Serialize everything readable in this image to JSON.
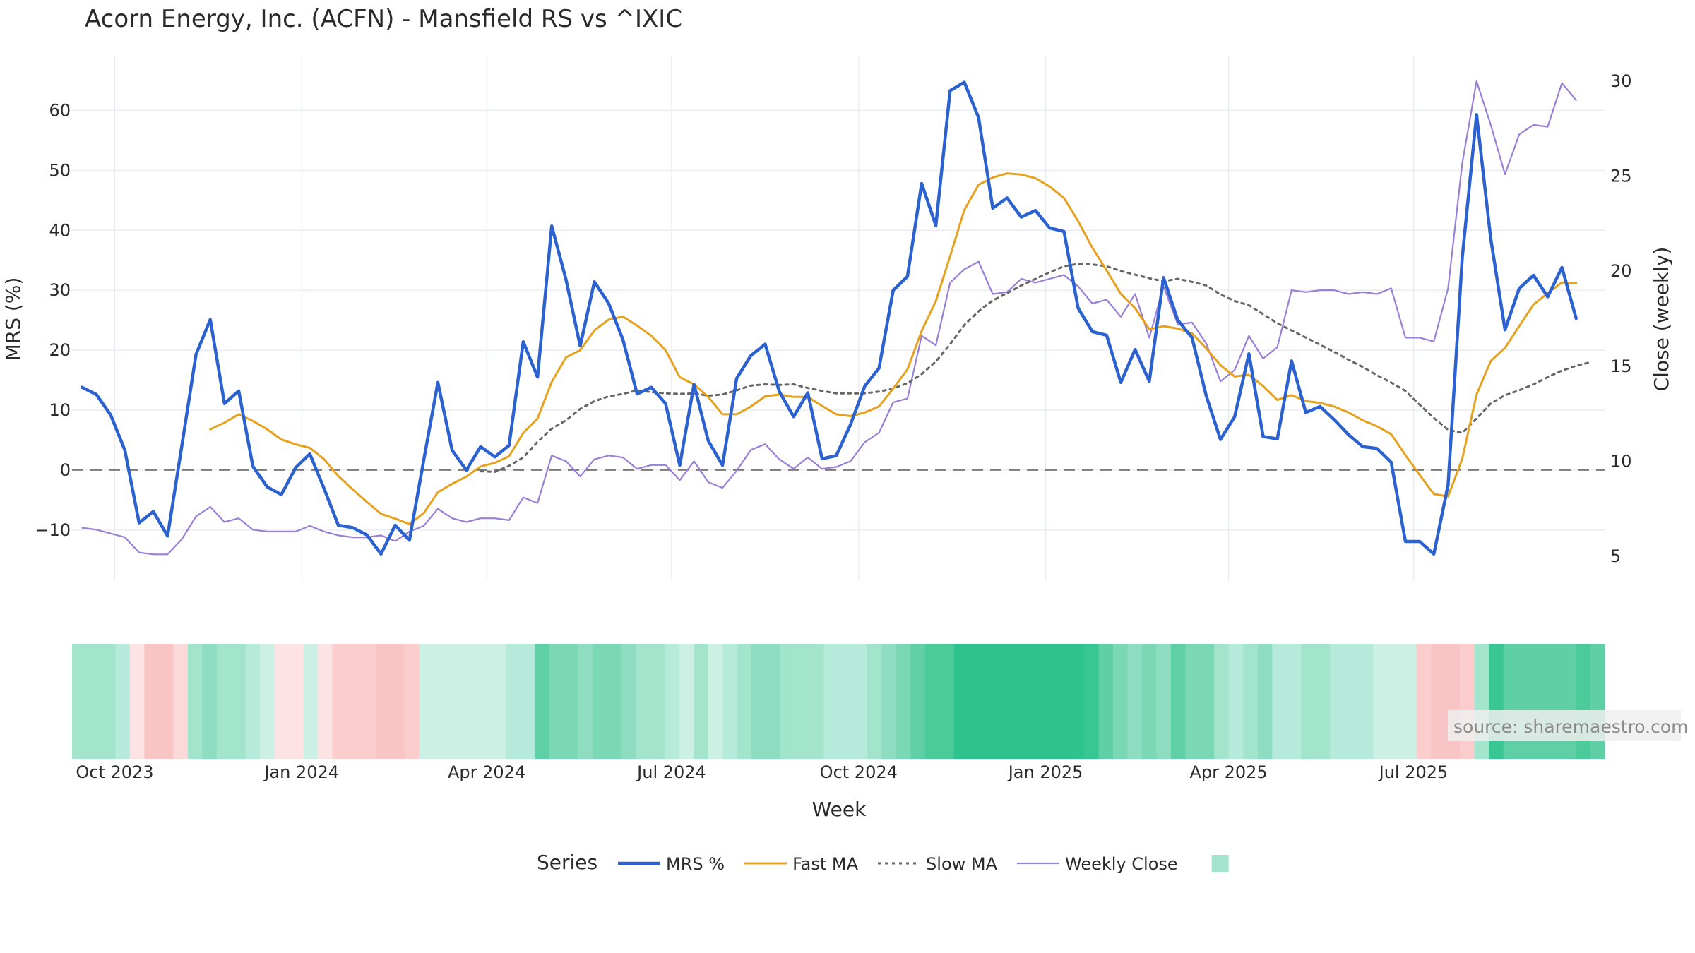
{
  "chart_data": {
    "type": "line",
    "title": "Acorn Energy, Inc. (ACFN) - Mansfield RS vs ^IXIC",
    "xlabel": "Week",
    "ylabel_left": "MRS (%)",
    "ylabel_right": "Close (weekly)",
    "y_left_range": [
      -18.5,
      69
    ],
    "y_right_range": [
      3.7,
      31.3
    ],
    "y_left_ticks": [
      -10,
      0,
      10,
      20,
      30,
      40,
      50,
      60
    ],
    "y_left_tick_labels": [
      "−10",
      "0",
      "10",
      "20",
      "30",
      "40",
      "50",
      "60"
    ],
    "y_right_ticks": [
      5,
      10,
      15,
      20,
      25,
      30
    ],
    "y_right_tick_labels": [
      "5",
      "10",
      "15",
      "20",
      "25",
      "30"
    ],
    "x_range": [
      "2023-09-10",
      "2025-10-03"
    ],
    "x_ticks": [
      {
        "date": "2023-10-01",
        "label": "Oct 2023"
      },
      {
        "date": "2024-01-01",
        "label": "Jan 2024"
      },
      {
        "date": "2024-04-01",
        "label": "Apr 2024"
      },
      {
        "date": "2024-07-01",
        "label": "Jul 2024"
      },
      {
        "date": "2024-10-01",
        "label": "Oct 2024"
      },
      {
        "date": "2025-01-01",
        "label": "Jan 2025"
      },
      {
        "date": "2025-04-01",
        "label": "Apr 2025"
      },
      {
        "date": "2025-07-01",
        "label": "Jul 2025"
      }
    ],
    "x_dates": [
      "2023-09-15",
      "2023-09-22",
      "2023-09-29",
      "2023-10-06",
      "2023-10-13",
      "2023-10-20",
      "2023-10-27",
      "2023-11-03",
      "2023-11-10",
      "2023-11-17",
      "2023-11-24",
      "2023-12-01",
      "2023-12-08",
      "2023-12-15",
      "2023-12-22",
      "2023-12-29",
      "2024-01-05",
      "2024-01-12",
      "2024-01-19",
      "2024-01-26",
      "2024-02-02",
      "2024-02-09",
      "2024-02-16",
      "2024-02-23",
      "2024-03-01",
      "2024-03-08",
      "2024-03-15",
      "2024-03-22",
      "2024-03-29",
      "2024-04-05",
      "2024-04-12",
      "2024-04-19",
      "2024-04-26",
      "2024-05-03",
      "2024-05-10",
      "2024-05-17",
      "2024-05-24",
      "2024-05-31",
      "2024-06-07",
      "2024-06-14",
      "2024-06-21",
      "2024-06-28",
      "2024-07-05",
      "2024-07-12",
      "2024-07-19",
      "2024-07-26",
      "2024-08-02",
      "2024-08-09",
      "2024-08-16",
      "2024-08-23",
      "2024-08-30",
      "2024-09-06",
      "2024-09-13",
      "2024-09-20",
      "2024-09-27",
      "2024-10-04",
      "2024-10-11",
      "2024-10-18",
      "2024-10-25",
      "2024-11-01",
      "2024-11-08",
      "2024-11-15",
      "2024-11-22",
      "2024-11-29",
      "2024-12-06",
      "2024-12-13",
      "2024-12-20",
      "2024-12-27",
      "2025-01-03",
      "2025-01-10",
      "2025-01-17",
      "2025-01-24",
      "2025-01-31",
      "2025-02-07",
      "2025-02-14",
      "2025-02-21",
      "2025-02-28",
      "2025-03-07",
      "2025-03-14",
      "2025-03-21",
      "2025-03-28",
      "2025-04-04",
      "2025-04-11",
      "2025-04-18",
      "2025-04-25",
      "2025-05-02",
      "2025-05-09",
      "2025-05-16",
      "2025-05-23",
      "2025-05-30",
      "2025-06-06",
      "2025-06-13",
      "2025-06-20",
      "2025-06-27",
      "2025-07-04",
      "2025-07-11",
      "2025-07-18",
      "2025-07-25",
      "2025-08-01",
      "2025-08-08",
      "2025-08-15",
      "2025-08-22",
      "2025-08-29",
      "2025-09-05",
      "2025-09-12",
      "2025-09-19",
      "2025-09-26"
    ],
    "series": [
      {
        "name": "MRS %",
        "axis": "left",
        "color": "#2b62d0",
        "values": [
          13.8,
          12.6,
          9.2,
          3.3,
          -8.8,
          -6.9,
          -11,
          4,
          19.3,
          25.1,
          11.1,
          13.2,
          0.6,
          -2.8,
          -4.1,
          0.4,
          2.7,
          -3.1,
          -9.2,
          -9.6,
          -10.8,
          -14,
          -9.2,
          -11.7,
          1.6,
          14.6,
          3.3,
          0,
          3.9,
          2.2,
          4.1,
          21.4,
          15.5,
          40.7,
          31.8,
          20.7,
          31.4,
          27.8,
          21.8,
          12.7,
          13.8,
          11.1,
          0.8,
          14.3,
          4.9,
          0.8,
          15.3,
          19.1,
          21,
          13.1,
          8.9,
          12.9,
          1.9,
          2.4,
          7.6,
          14,
          17,
          30,
          32.3,
          47.8,
          40.8,
          63.3,
          64.7,
          58.8,
          43.7,
          45.4,
          42.2,
          43.3,
          40.4,
          39.8,
          27,
          23.1,
          22.5,
          14.6,
          20.1,
          14.8,
          32.1,
          25,
          22.1,
          12.4,
          5.1,
          8.9,
          19.4,
          5.6,
          5.2,
          18.2,
          9.6,
          10.6,
          8.4,
          5.9,
          3.9,
          3.6,
          1.3,
          -11.9,
          -11.9,
          -14,
          -2.5,
          35.5,
          59.3,
          38.6,
          23.4,
          30.3,
          32.5,
          28.9,
          33.8,
          25.3
        ]
      },
      {
        "name": "Fast MA",
        "axis": "left",
        "color": "#e6a21e",
        "values": [
          null,
          null,
          null,
          null,
          null,
          null,
          null,
          null,
          null,
          6.8,
          7.9,
          9.3,
          8.2,
          6.8,
          5.1,
          4.3,
          3.7,
          1.8,
          -1,
          -3.2,
          -5.3,
          -7.3,
          -8.1,
          -9,
          -7.2,
          -3.7,
          -2.3,
          -1.1,
          0.6,
          1.2,
          2.3,
          6.2,
          8.6,
          14.7,
          18.8,
          20,
          23.3,
          25.1,
          25.6,
          24.1,
          22.4,
          20,
          15.5,
          14.3,
          12.2,
          9.3,
          9.3,
          10.6,
          12.3,
          12.6,
          12.2,
          12.2,
          10.7,
          9.3,
          9,
          9.6,
          10.6,
          13.6,
          16.8,
          23.2,
          28.2,
          35.7,
          43.4,
          47.6,
          48.8,
          49.5,
          49.3,
          48.7,
          47.3,
          45.4,
          41.5,
          37.1,
          33.3,
          29.4,
          27,
          23.5,
          24,
          23.6,
          22.8,
          20.3,
          17.5,
          15.6,
          15.9,
          14,
          11.7,
          12.5,
          11.5,
          11.2,
          10.6,
          9.6,
          8.3,
          7.3,
          6,
          2.5,
          -0.8,
          -4,
          -4.4,
          1.9,
          12.6,
          18.2,
          20.4,
          24,
          27.6,
          29.5,
          31.3,
          31.2
        ]
      },
      {
        "name": "Slow MA",
        "axis": "left",
        "color": "#666666",
        "values": [
          null,
          null,
          null,
          null,
          null,
          null,
          null,
          null,
          null,
          null,
          null,
          null,
          null,
          null,
          null,
          null,
          null,
          null,
          null,
          null,
          null,
          null,
          null,
          null,
          null,
          null,
          null,
          null,
          -0.2,
          -0.3,
          0.7,
          2.1,
          4.7,
          6.9,
          8.3,
          10.2,
          11.5,
          12.3,
          12.7,
          13.3,
          13,
          12.8,
          12.7,
          12.8,
          12.4,
          12.6,
          13.3,
          14.1,
          14.3,
          14.2,
          14.3,
          13.7,
          13.2,
          12.8,
          12.8,
          12.8,
          13.1,
          13.6,
          14.5,
          16,
          18.1,
          21,
          24.2,
          26.5,
          28.3,
          29.5,
          30.8,
          31.9,
          33,
          34,
          34.4,
          34.3,
          34,
          33.2,
          32.6,
          32,
          31.5,
          31.9,
          31.4,
          30.8,
          29.3,
          28.2,
          27.5,
          26,
          24.5,
          23.3,
          22.1,
          20.9,
          19.7,
          18.4,
          17.2,
          15.8,
          14.6,
          13.2,
          10.9,
          8.7,
          6.7,
          6.2,
          8.6,
          11.1,
          12.5,
          13.3,
          14.3,
          15.5,
          16.6,
          17.4,
          18
        ]
      },
      {
        "name": "Weekly Close",
        "axis": "right",
        "color": "#9a7fd6",
        "values": [
          6.5,
          6.4,
          6.2,
          6,
          5.2,
          5.1,
          5.1,
          5.9,
          7.1,
          7.6,
          6.8,
          7,
          6.4,
          6.3,
          6.3,
          6.3,
          6.6,
          6.3,
          6.1,
          6,
          6,
          6.1,
          5.8,
          6.3,
          6.6,
          7.5,
          7,
          6.8,
          7,
          7,
          6.9,
          8.1,
          7.8,
          10.3,
          10,
          9.2,
          10.1,
          10.3,
          10.2,
          9.6,
          9.8,
          9.8,
          9,
          10,
          8.9,
          8.6,
          9.5,
          10.6,
          10.9,
          10.1,
          9.6,
          10.2,
          9.6,
          9.7,
          10,
          11,
          11.5,
          13.1,
          13.3,
          16.6,
          16.1,
          19.4,
          20.1,
          20.5,
          18.8,
          18.9,
          19.6,
          19.4,
          19.6,
          19.8,
          19.2,
          18.3,
          18.5,
          17.6,
          18.8,
          16.5,
          19.2,
          17.2,
          17.3,
          16.2,
          14.2,
          14.8,
          16.6,
          15.4,
          16,
          19,
          18.9,
          19,
          19,
          18.8,
          18.9,
          18.8,
          19.1,
          16.5,
          16.5,
          16.3,
          19.1,
          25.7,
          30,
          27.7,
          25.1,
          27.2,
          27.7,
          27.6,
          29.9,
          29
        ]
      }
    ],
    "reference_line": {
      "axis": "left",
      "value": 0
    },
    "heatmap_strip": {
      "colors": [
        "#a3e4cd",
        "#a3e4cd",
        "#a3e4cd",
        "#b6eada",
        "#fde3e3",
        "#f9c4c4",
        "#f9c4c4",
        "#fcd9d9",
        "#a3e4cd",
        "#8edcc1",
        "#a3e4cd",
        "#a3e4cd",
        "#b6eada",
        "#cdf0e4",
        "#fde3e3",
        "#fde3e3",
        "#cdf0e4",
        "#fde3e3",
        "#fbcdcd",
        "#fbcdcd",
        "#fbcdcd",
        "#f9c4c4",
        "#f9c4c4",
        "#fbcdcd",
        "#cdf0e4",
        "#cdf0e4",
        "#cdf0e4",
        "#cdf0e4",
        "#cdf0e4",
        "#cdf0e4",
        "#b6eada",
        "#b6eada",
        "#5fcfa5",
        "#7ad8b5",
        "#7ad8b5",
        "#8edcc1",
        "#7ad8b5",
        "#7ad8b5",
        "#8edcc1",
        "#a3e4cd",
        "#a3e4cd",
        "#b6eada",
        "#cdf0e4",
        "#a3e4cd",
        "#cdf0e4",
        "#b6eada",
        "#a3e4cd",
        "#8edcc1",
        "#8edcc1",
        "#a3e4cd",
        "#a3e4cd",
        "#a3e4cd",
        "#b6eada",
        "#b6eada",
        "#b6eada",
        "#a3e4cd",
        "#8edcc1",
        "#7ad8b5",
        "#5fcfa5",
        "#4ccb9a",
        "#4ccb9a",
        "#2ec28f",
        "#2ec28f",
        "#2ec28f",
        "#2ec28f",
        "#2ec28f",
        "#2ec28f",
        "#2ec28f",
        "#2ec28f",
        "#2ec28f",
        "#38c695",
        "#5fcfa5",
        "#7ad8b5",
        "#8edcc1",
        "#7ad8b5",
        "#8edcc1",
        "#5fcfa5",
        "#7ad8b5",
        "#7ad8b5",
        "#a3e4cd",
        "#b6eada",
        "#a3e4cd",
        "#8edcc1",
        "#b6eada",
        "#b6eada",
        "#a3e4cd",
        "#a3e4cd",
        "#b6eada",
        "#b6eada",
        "#b6eada",
        "#cdf0e4",
        "#cdf0e4",
        "#cdf0e4",
        "#fbcdcd",
        "#f9c4c4",
        "#f9c4c4",
        "#fbcdcd",
        "#a3e4cd",
        "#38c695",
        "#5fcfa5",
        "#5fcfa5",
        "#5fcfa5",
        "#5fcfa5",
        "#5fcfa5",
        "#4ccb9a",
        "#5fcfa5"
      ]
    },
    "legend": {
      "title": "Series",
      "placement": "bottom-center",
      "items": [
        {
          "label": "MRS %",
          "style": "solid-thick",
          "color": "#2b62d0"
        },
        {
          "label": "Fast MA",
          "style": "solid",
          "color": "#e6a21e"
        },
        {
          "label": "Slow MA",
          "style": "dotted",
          "color": "#666666"
        },
        {
          "label": "Weekly Close",
          "style": "solid-thin",
          "color": "#9a7fd6"
        },
        {
          "label": "",
          "style": "swatch",
          "color": "#a3e4cd"
        }
      ]
    },
    "grid": true
  },
  "watermark": "source: sharemaestro.com"
}
